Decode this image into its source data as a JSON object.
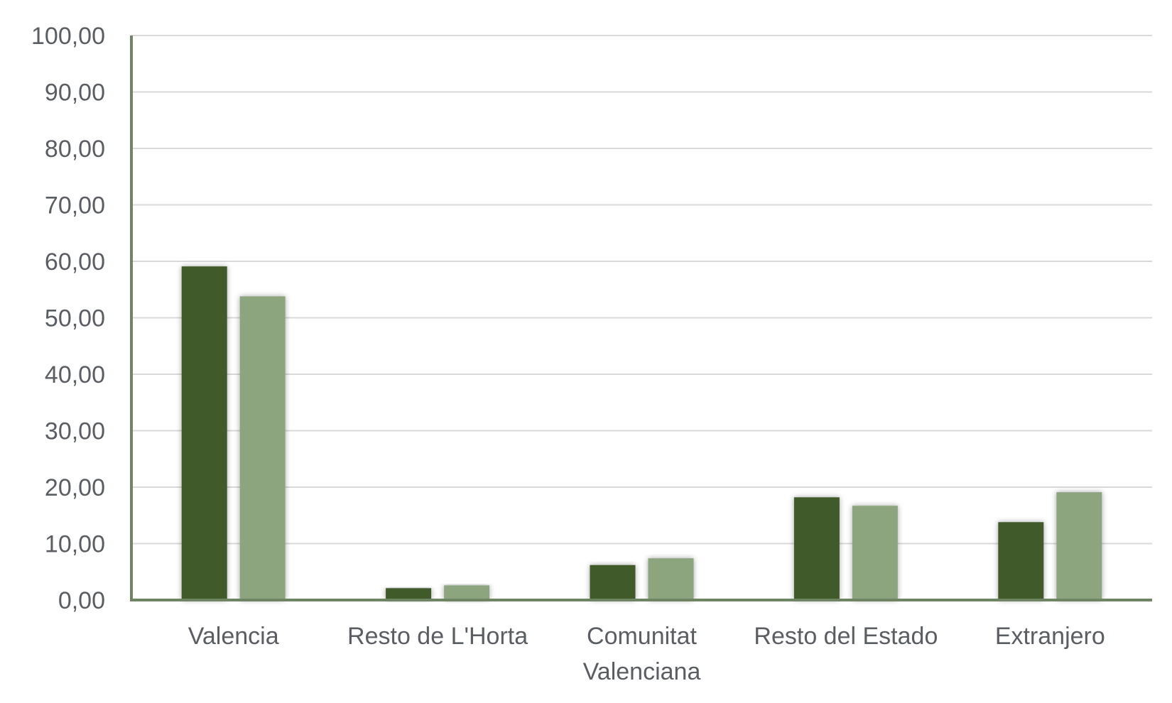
{
  "chart_data": {
    "type": "bar",
    "title": "",
    "xlabel": "",
    "ylabel": "",
    "ylim": [
      0,
      100
    ],
    "yticks": [
      "0,00",
      "10,00",
      "20,00",
      "30,00",
      "40,00",
      "50,00",
      "60,00",
      "70,00",
      "80,00",
      "90,00",
      "100,00"
    ],
    "categories": [
      [
        "Valencia"
      ],
      [
        "Resto de L'Horta"
      ],
      [
        "Comunitat",
        "Valenciana"
      ],
      [
        "Resto del Estado"
      ],
      [
        "Extranjero"
      ]
    ],
    "series": [
      {
        "values": [
          59.1,
          2.1,
          6.2,
          18.2,
          13.8
        ],
        "color": "#3f5a2c"
      },
      {
        "values": [
          53.8,
          2.6,
          7.4,
          16.7,
          19.1
        ],
        "color": "#8ca57f"
      }
    ],
    "grid": true,
    "legend": "none"
  }
}
